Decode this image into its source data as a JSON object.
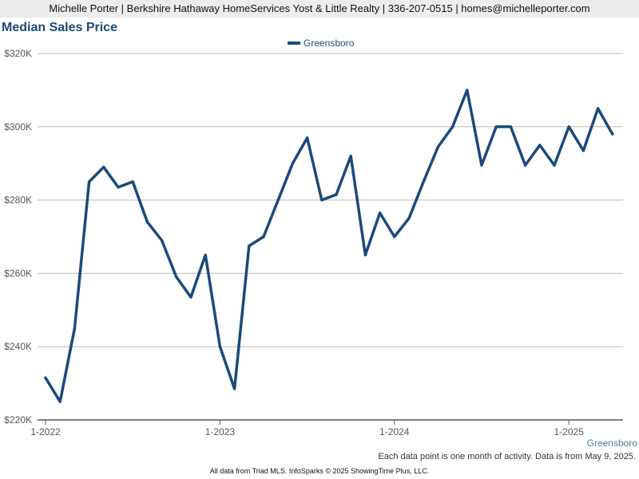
{
  "header": {
    "contact_line": "Michelle Porter | Berkshire Hathaway HomeServices Yost & Little Realty | 336-207-0515 | homes@michelleporter.com"
  },
  "chart_data": {
    "type": "line",
    "title": "Median Sales Price",
    "xlabel": "",
    "ylabel": "",
    "ylim": [
      220000,
      320000
    ],
    "y_ticks": [
      220000,
      240000,
      260000,
      280000,
      300000,
      320000
    ],
    "y_tick_labels": [
      "$220K",
      "$240K",
      "$260K",
      "$280K",
      "$300K",
      "$320K"
    ],
    "x_tick_labels": [
      "1-2022",
      "1-2023",
      "1-2024",
      "1-2025"
    ],
    "x": [
      "2022-01",
      "2022-02",
      "2022-03",
      "2022-04",
      "2022-05",
      "2022-06",
      "2022-07",
      "2022-08",
      "2022-09",
      "2022-10",
      "2022-11",
      "2022-12",
      "2023-01",
      "2023-02",
      "2023-03",
      "2023-04",
      "2023-05",
      "2023-06",
      "2023-07",
      "2023-08",
      "2023-09",
      "2023-10",
      "2023-11",
      "2023-12",
      "2024-01",
      "2024-02",
      "2024-03",
      "2024-04",
      "2024-05",
      "2024-06",
      "2024-07",
      "2024-08",
      "2024-09",
      "2024-10",
      "2024-11",
      "2024-12",
      "2025-01",
      "2025-02",
      "2025-03",
      "2025-04"
    ],
    "series": [
      {
        "name": "Greensboro",
        "color": "#1a4a7a",
        "values": [
          231500,
          225000,
          245000,
          285000,
          289000,
          283500,
          285000,
          274000,
          269000,
          259000,
          253500,
          265000,
          240000,
          228500,
          267500,
          270000,
          280000,
          290000,
          297000,
          280000,
          281500,
          292000,
          265000,
          276500,
          270000,
          275000,
          285000,
          294500,
          300000,
          310000,
          289500,
          300000,
          300000,
          289500,
          295000,
          289500,
          300000,
          293500,
          305000,
          298000
        ]
      }
    ],
    "grid": true,
    "legend": "top-center"
  },
  "series_tag": "Greensboro",
  "note": "Each data point is one month of activity. Data is from May 9, 2025.",
  "footer": "All data from Triad MLS. InfoSparks © 2025 ShowingTime Plus, LLC."
}
